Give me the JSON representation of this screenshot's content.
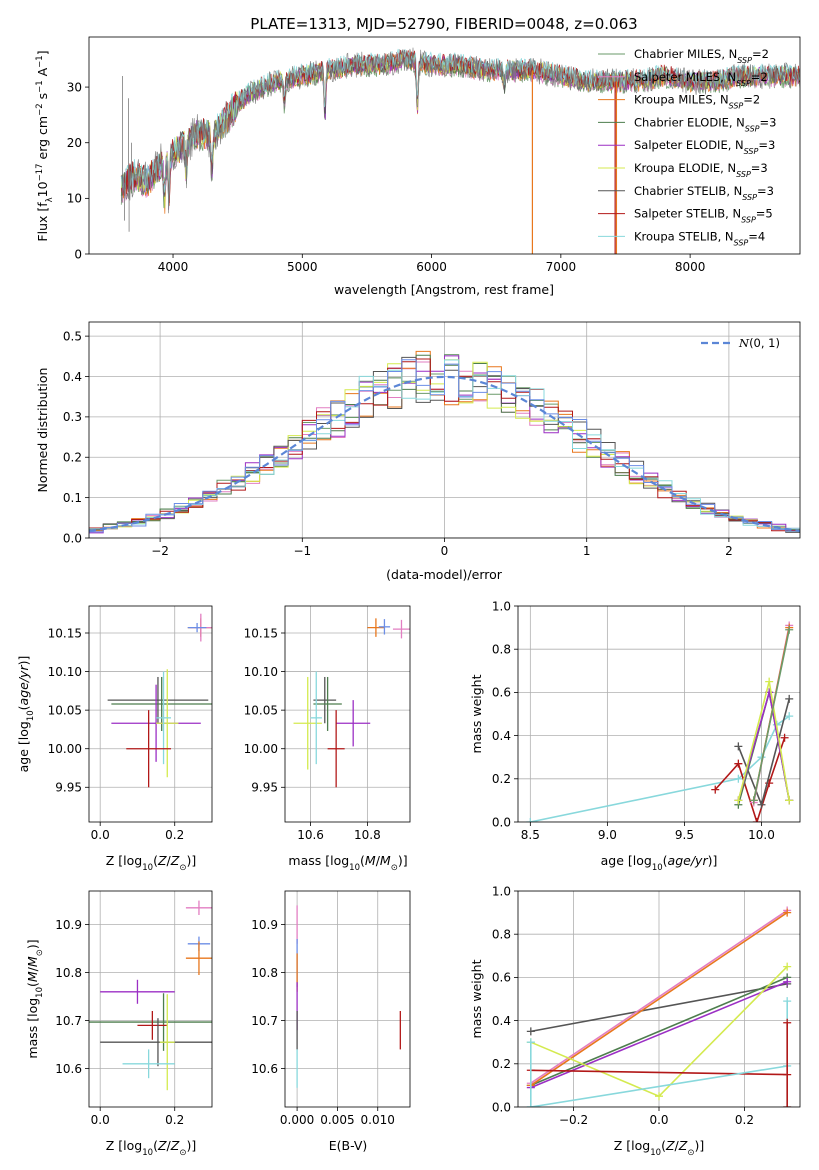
{
  "figure_title": "PLATE=1313, MJD=52790, FIBERID=0048, z=0.063",
  "colors": {
    "Chabrier MILES": "#6a9a6a",
    "Salpeter MILES": "#e27ec2",
    "Kroupa MILES": "#e8771d",
    "Chabrier ELODIE": "#4d7d4d",
    "Salpeter ELODIE": "#9b2fc4",
    "Kroupa ELODIE": "#d4ea4f",
    "Chabrier STELIB": "#555555",
    "Salpeter STELIB": "#b21818",
    "Kroupa STELIB": "#88d8dc",
    "normal": "#5b86d6",
    "extra_blue": "#6c8ee6"
  },
  "chart_data": [
    {
      "id": "spectrum",
      "type": "line",
      "title": "PLATE=1313, MJD=52790, FIBERID=0048, z=0.063",
      "xlabel": "wavelength [Angstrom, rest frame]",
      "ylabel": "Flux [f_λ 10^-17 erg cm^-2 s^-1 A^-1]",
      "xlim": [
        3350,
        8850
      ],
      "ylim": [
        0,
        39
      ],
      "xticks": [
        4000,
        5000,
        6000,
        7000,
        8000
      ],
      "yticks": [
        0,
        10,
        20,
        30
      ],
      "grid": false,
      "legend_position": "top-right",
      "legend": [
        "Chabrier MILES, N_SSP=2",
        "Salpeter MILES, N_SSP=2",
        "Kroupa MILES, N_SSP=2",
        "Chabrier ELODIE, N_SSP=3",
        "Salpeter ELODIE, N_SSP=3",
        "Kroupa ELODIE, N_SSP=3",
        "Chabrier STELIB, N_SSP=3",
        "Salpeter STELIB, N_SSP=5",
        "Kroupa STELIB, N_SSP=4"
      ],
      "continuum": [
        [
          3600,
          12
        ],
        [
          3700,
          14
        ],
        [
          3800,
          13
        ],
        [
          3900,
          16
        ],
        [
          4000,
          18
        ],
        [
          4100,
          20
        ],
        [
          4200,
          22
        ],
        [
          4300,
          21
        ],
        [
          4400,
          24
        ],
        [
          4500,
          27
        ],
        [
          4600,
          29
        ],
        [
          4800,
          31
        ],
        [
          5000,
          32
        ],
        [
          5200,
          33
        ],
        [
          5400,
          34
        ],
        [
          5600,
          34
        ],
        [
          5800,
          35
        ],
        [
          6000,
          34
        ],
        [
          6200,
          34
        ],
        [
          6400,
          33
        ],
        [
          6600,
          33
        ],
        [
          6800,
          33
        ],
        [
          7000,
          32
        ],
        [
          7200,
          31
        ],
        [
          7400,
          31
        ],
        [
          7600,
          31
        ],
        [
          7800,
          32
        ],
        [
          8000,
          31
        ],
        [
          8200,
          31
        ],
        [
          8400,
          32
        ],
        [
          8600,
          32
        ],
        [
          8800,
          32
        ]
      ],
      "absorption_lines": [
        [
          3934,
          7
        ],
        [
          3969,
          8
        ],
        [
          4102,
          5
        ],
        [
          4300,
          6
        ],
        [
          4861,
          4
        ],
        [
          5175,
          8
        ],
        [
          5890,
          8
        ],
        [
          6563,
          3
        ]
      ],
      "drops": [
        {
          "series": "Kroupa MILES",
          "x": 6780
        },
        {
          "series": "Salpeter STELIB",
          "x": 7420
        },
        {
          "series": "Kroupa MILES",
          "x": 7430
        }
      ]
    },
    {
      "id": "residuals",
      "type": "line",
      "xlabel": "(data-model)/error",
      "ylabel": "Normed distribution",
      "xlim": [
        -2.5,
        2.5
      ],
      "ylim": [
        0,
        0.535
      ],
      "xticks": [
        -2,
        -1,
        0,
        1,
        2
      ],
      "yticks": [
        0,
        0.1,
        0.2,
        0.3,
        0.4,
        0.5
      ],
      "grid": true,
      "legend_position": "top-right",
      "legend": [
        "N(0,1)"
      ],
      "hist_bins": 50,
      "hist_x_range": [
        -2.5,
        2.5
      ]
    },
    {
      "id": "age_vs_Z",
      "type": "scatter",
      "xlabel": "Z [log10(Z/Z☉)]",
      "ylabel": "age [log10(age/yr)]",
      "xlim": [
        -0.03,
        0.3
      ],
      "ylim": [
        9.905,
        10.185
      ],
      "xticks": [
        0.0,
        0.2
      ],
      "yticks": [
        9.95,
        10.0,
        10.05,
        10.1,
        10.15
      ],
      "grid": true,
      "points": [
        {
          "series": "Kroupa MILES",
          "x": 0.27,
          "y": 10.157,
          "xerr": 0.035,
          "yerr": 0.012
        },
        {
          "series": "Salpeter MILES",
          "x": 0.27,
          "y": 10.157,
          "xerr": 0.03,
          "yerr": 0.018
        },
        {
          "series": "extra blue",
          "x": 0.26,
          "y": 10.157,
          "xerr": 0.025,
          "yerr": 0.006
        },
        {
          "series": "Chabrier STELIB",
          "x": 0.155,
          "y": 10.063,
          "xerr": 0.135,
          "yerr": 0.03
        },
        {
          "series": "Chabrier ELODIE",
          "x": 0.165,
          "y": 10.058,
          "xerr": 0.135,
          "yerr": 0.035
        },
        {
          "series": "Salpeter ELODIE",
          "x": 0.15,
          "y": 10.033,
          "xerr": 0.12,
          "yerr": 0.05
        },
        {
          "series": "Kroupa ELODIE",
          "x": 0.18,
          "y": 10.033,
          "xerr": 0.03,
          "yerr": 0.07
        },
        {
          "series": "Kroupa STELIB",
          "x": 0.17,
          "y": 10.04,
          "xerr": 0.02,
          "yerr": 0.06
        },
        {
          "series": "Salpeter STELIB",
          "x": 0.13,
          "y": 10.0,
          "xerr": 0.06,
          "yerr": 0.05
        }
      ]
    },
    {
      "id": "age_vs_mass",
      "type": "scatter",
      "xlabel": "mass [log10(M/M☉)]",
      "ylabel": "",
      "xlim": [
        10.51,
        10.95
      ],
      "ylim": [
        9.905,
        10.185
      ],
      "xticks": [
        10.6,
        10.8
      ],
      "yticks": [
        9.95,
        10.0,
        10.05,
        10.1,
        10.15
      ],
      "grid": true,
      "points": [
        {
          "series": "Kroupa MILES",
          "x": 10.83,
          "y": 10.157,
          "xerr": 0.03,
          "yerr": 0.012
        },
        {
          "series": "Salpeter MILES",
          "x": 10.92,
          "y": 10.155,
          "xerr": 0.03,
          "yerr": 0.012
        },
        {
          "series": "extra blue",
          "x": 10.86,
          "y": 10.158,
          "xerr": 0.02,
          "yerr": 0.01
        },
        {
          "series": "Chabrier STELIB",
          "x": 10.65,
          "y": 10.063,
          "xerr": 0.04,
          "yerr": 0.03
        },
        {
          "series": "Chabrier ELODIE",
          "x": 10.66,
          "y": 10.058,
          "xerr": 0.05,
          "yerr": 0.035
        },
        {
          "series": "Salpeter ELODIE",
          "x": 10.75,
          "y": 10.033,
          "xerr": 0.06,
          "yerr": 0.03
        },
        {
          "series": "Kroupa ELODIE",
          "x": 10.59,
          "y": 10.033,
          "xerr": 0.05,
          "yerr": 0.06
        },
        {
          "series": "Kroupa STELIB",
          "x": 10.62,
          "y": 10.04,
          "xerr": 0.02,
          "yerr": 0.06
        },
        {
          "series": "Salpeter STELIB",
          "x": 10.69,
          "y": 10.0,
          "xerr": 0.03,
          "yerr": 0.05
        }
      ]
    },
    {
      "id": "weight_vs_age",
      "type": "line",
      "xlabel": "age [log10(age/yr)]",
      "ylabel": "mass weight",
      "xlim": [
        8.42,
        10.25
      ],
      "ylim": [
        0,
        1
      ],
      "xticks": [
        8.5,
        9.0,
        9.5,
        10.0
      ],
      "yticks": [
        0,
        0.2,
        0.4,
        0.6,
        0.8,
        1.0
      ],
      "grid": true,
      "series": [
        {
          "series": "Kroupa STELIB",
          "x": [
            8.5,
            9.85,
            10.0,
            10.1,
            10.18
          ],
          "y": [
            0.0,
            0.2,
            0.3,
            0.45,
            0.49
          ]
        },
        {
          "series": "Salpeter STELIB",
          "x": [
            9.7,
            9.85,
            9.97,
            10.05,
            10.15
          ],
          "y": [
            0.15,
            0.27,
            0.0,
            0.18,
            0.39
          ]
        },
        {
          "series": "Chabrier STELIB",
          "x": [
            9.85,
            10.0,
            10.18
          ],
          "y": [
            0.35,
            0.08,
            0.57
          ]
        },
        {
          "series": "Chabrier ELODIE",
          "x": [
            9.85,
            10.05,
            10.18
          ],
          "y": [
            0.08,
            0.6,
            0.1
          ]
        },
        {
          "series": "Salpeter ELODIE",
          "x": [
            9.85,
            10.05,
            10.18
          ],
          "y": [
            0.1,
            0.6,
            0.1
          ]
        },
        {
          "series": "Kroupa ELODIE",
          "x": [
            9.85,
            10.05,
            10.18
          ],
          "y": [
            0.1,
            0.65,
            0.1
          ]
        },
        {
          "series": "Salpeter MILES",
          "x": [
            9.95,
            10.18
          ],
          "y": [
            0.09,
            0.91
          ]
        },
        {
          "series": "Kroupa MILES",
          "x": [
            9.95,
            10.18
          ],
          "y": [
            0.1,
            0.9
          ]
        },
        {
          "series": "Chabrier MILES",
          "x": [
            9.95,
            10.18
          ],
          "y": [
            0.1,
            0.89
          ]
        }
      ]
    },
    {
      "id": "mass_vs_Z",
      "type": "scatter",
      "xlabel": "Z [log10(Z/Z☉)]",
      "ylabel": "mass [log10(M/M☉)]",
      "xlim": [
        -0.03,
        0.3
      ],
      "ylim": [
        10.52,
        10.97
      ],
      "xticks": [
        0.0,
        0.2
      ],
      "yticks": [
        10.6,
        10.7,
        10.8,
        10.9
      ],
      "grid": true,
      "points": [
        {
          "series": "Salpeter MILES",
          "x": 0.265,
          "y": 10.935,
          "xerr": 0.035,
          "yerr": 0.015
        },
        {
          "series": "extra blue",
          "x": 0.265,
          "y": 10.86,
          "xerr": 0.03,
          "yerr": 0.015
        },
        {
          "series": "Kroupa MILES",
          "x": 0.265,
          "y": 10.83,
          "xerr": 0.035,
          "yerr": 0.035
        },
        {
          "series": "Salpeter ELODIE",
          "x": 0.1,
          "y": 10.76,
          "xerr": 0.1,
          "yerr": 0.025
        },
        {
          "series": "Chabrier ELODIE",
          "x": 0.17,
          "y": 10.697,
          "xerr": 0.21,
          "yerr": 0.06
        },
        {
          "series": "Salpeter STELIB",
          "x": 0.14,
          "y": 10.69,
          "xerr": 0.04,
          "yerr": 0.03
        },
        {
          "series": "Chabrier STELIB",
          "x": 0.155,
          "y": 10.655,
          "xerr": 0.155,
          "yerr": 0.05
        },
        {
          "series": "Kroupa ELODIE",
          "x": 0.18,
          "y": 10.655,
          "xerr": 0.02,
          "yerr": 0.1
        },
        {
          "series": "Kroupa STELIB",
          "x": 0.13,
          "y": 10.61,
          "xerr": 0.07,
          "yerr": 0.03
        }
      ]
    },
    {
      "id": "mass_vs_ebv",
      "type": "scatter",
      "xlabel": "E(B-V)",
      "ylabel": "",
      "xlim": [
        -0.0015,
        0.014
      ],
      "ylim": [
        10.52,
        10.97
      ],
      "xticks": [
        0.0,
        0.005,
        0.01
      ],
      "xticklabels": [
        "0.000",
        "0.005",
        "0.010"
      ],
      "yticks": [
        10.6,
        10.7,
        10.8,
        10.9
      ],
      "grid": true,
      "points": [
        {
          "series": "Salpeter MILES",
          "x": 0.0,
          "y": 10.9,
          "xerr": 0,
          "yerr": 0.04
        },
        {
          "series": "extra blue",
          "x": 0.0,
          "y": 10.82,
          "xerr": 0,
          "yerr": 0.05
        },
        {
          "series": "Kroupa MILES",
          "x": 0.0,
          "y": 10.8,
          "xerr": 0,
          "yerr": 0.04
        },
        {
          "series": "Salpeter ELODIE",
          "x": 0.0,
          "y": 10.73,
          "xerr": 0,
          "yerr": 0.05
        },
        {
          "series": "Chabrier STELIB",
          "x": 0.0,
          "y": 10.68,
          "xerr": 0,
          "yerr": 0.04
        },
        {
          "series": "Kroupa STELIB",
          "x": 0.0,
          "y": 10.6,
          "xerr": 0,
          "yerr": 0.04
        },
        {
          "series": "Salpeter STELIB",
          "x": 0.0128,
          "y": 10.68,
          "xerr": 0,
          "yerr": 0.04
        }
      ]
    },
    {
      "id": "weight_vs_Z",
      "type": "line",
      "xlabel": "Z [log10(Z/Z☉)]",
      "ylabel": "mass weight",
      "xlim": [
        -0.33,
        0.33
      ],
      "ylim": [
        0,
        1
      ],
      "xticks": [
        -0.2,
        0.0,
        0.2
      ],
      "yticks": [
        0,
        0.2,
        0.4,
        0.6,
        0.8,
        1.0
      ],
      "grid": true,
      "series": [
        {
          "series": "Chabrier STELIB",
          "x": [
            -0.3,
            0.3
          ],
          "y": [
            0.35,
            0.57
          ]
        },
        {
          "series": "Chabrier ELODIE",
          "x": [
            -0.3,
            0.3
          ],
          "y": [
            0.1,
            0.6
          ]
        },
        {
          "series": "Salpeter ELODIE",
          "x": [
            -0.3,
            0.3
          ],
          "y": [
            0.09,
            0.58
          ]
        },
        {
          "series": "Salpeter MILES",
          "x": [
            -0.3,
            0.3
          ],
          "y": [
            0.11,
            0.91
          ]
        },
        {
          "series": "Kroupa MILES",
          "x": [
            -0.3,
            0.3
          ],
          "y": [
            0.1,
            0.9
          ]
        },
        {
          "series": "Kroupa ELODIE",
          "x": [
            -0.3,
            0.0,
            0.3
          ],
          "y": [
            0.3,
            0.05,
            0.65
          ]
        },
        {
          "series": "Salpeter STELIB",
          "x": [
            -0.3,
            0.3
          ],
          "y": [
            0.17,
            0.15
          ]
        },
        {
          "series": "Kroupa STELIB",
          "x": [
            -0.3,
            0.3
          ],
          "y": [
            0.0,
            0.19
          ]
        },
        {
          "series": "Kroupa STELIB",
          "x": [
            -0.3,
            -0.3
          ],
          "y": [
            0.0,
            0.3
          ],
          "vertical": true
        },
        {
          "series": "Kroupa STELIB",
          "x": [
            0.3,
            0.3
          ],
          "y": [
            0.0,
            0.49
          ],
          "vertical": true
        },
        {
          "series": "Salpeter STELIB",
          "x": [
            0.3,
            0.3
          ],
          "y": [
            0.0,
            0.39
          ],
          "vertical": true
        }
      ]
    }
  ]
}
